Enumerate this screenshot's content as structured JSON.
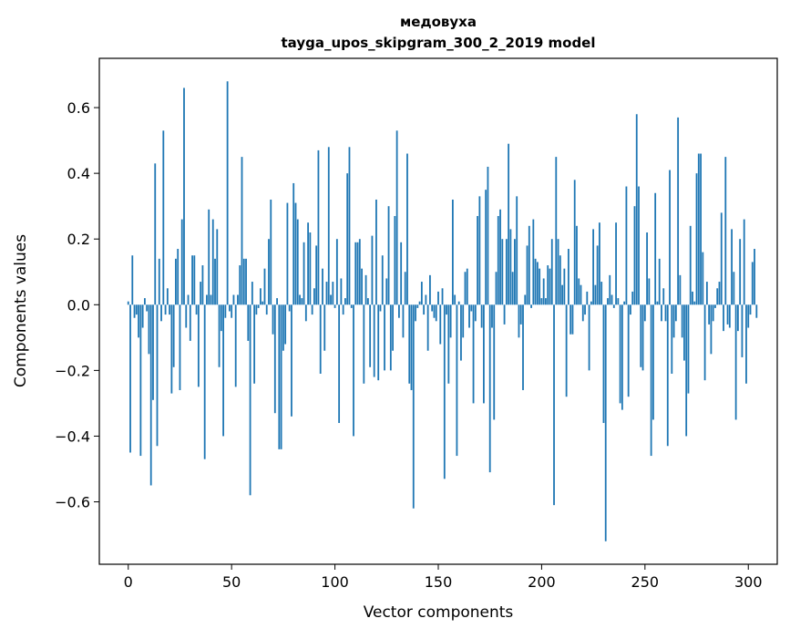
{
  "chart_data": {
    "type": "bar",
    "title_line1": "медовуха",
    "title_line2": "tayga_upos_skipgram_300_2_2019 model",
    "xlabel": "Vector components",
    "ylabel": "Components values",
    "xlim": [
      -14,
      314
    ],
    "ylim": [
      -0.79,
      0.75
    ],
    "xticks": [
      0,
      50,
      100,
      150,
      200,
      250,
      300
    ],
    "xtick_labels": [
      "0",
      "50",
      "100",
      "150",
      "200",
      "250",
      "300"
    ],
    "yticks": [
      -0.6,
      -0.4,
      -0.2,
      0.0,
      0.2,
      0.4,
      0.6
    ],
    "ytick_labels": [
      "−0.6",
      "−0.4",
      "−0.2",
      "0.0",
      "0.2",
      "0.4",
      "0.6"
    ],
    "bar_color": "#1f77b4",
    "values": [
      0.01,
      -0.45,
      0.15,
      -0.04,
      -0.03,
      -0.1,
      -0.46,
      -0.07,
      0.02,
      -0.02,
      -0.15,
      -0.55,
      -0.29,
      0.43,
      -0.43,
      0.14,
      -0.05,
      0.53,
      -0.03,
      0.05,
      -0.03,
      -0.27,
      -0.19,
      0.14,
      0.17,
      -0.26,
      0.26,
      0.66,
      -0.07,
      0.03,
      -0.11,
      0.15,
      0.15,
      -0.03,
      -0.25,
      0.07,
      0.12,
      -0.47,
      0.03,
      0.29,
      0.03,
      0.26,
      0.14,
      0.23,
      -0.19,
      -0.08,
      -0.4,
      -0.04,
      0.68,
      -0.02,
      -0.04,
      0.03,
      -0.25,
      0.03,
      0.12,
      0.45,
      0.14,
      0.14,
      -0.11,
      -0.58,
      0.07,
      -0.24,
      -0.03,
      -0.01,
      0.05,
      0.01,
      0.11,
      -0.03,
      0.2,
      0.32,
      -0.09,
      -0.33,
      0.02,
      -0.44,
      -0.44,
      -0.14,
      -0.12,
      0.31,
      -0.02,
      -0.34,
      0.37,
      0.31,
      0.26,
      0.03,
      0.02,
      0.19,
      -0.05,
      0.25,
      0.22,
      -0.03,
      0.05,
      0.18,
      0.47,
      -0.21,
      0.11,
      -0.14,
      0.07,
      0.48,
      0.03,
      0.07,
      -0.01,
      0.2,
      -0.36,
      0.08,
      -0.03,
      0.02,
      0.4,
      0.48,
      -0.01,
      -0.4,
      0.19,
      0.19,
      0.2,
      0.11,
      -0.24,
      0.09,
      0.02,
      -0.19,
      0.21,
      -0.22,
      0.32,
      -0.23,
      -0.02,
      0.15,
      -0.2,
      0.08,
      0.3,
      -0.2,
      -0.14,
      0.27,
      0.53,
      -0.04,
      0.19,
      -0.1,
      0.1,
      0.46,
      -0.24,
      -0.26,
      -0.62,
      -0.05,
      -0.01,
      0.01,
      0.07,
      -0.03,
      0.03,
      -0.14,
      0.09,
      -0.02,
      -0.04,
      -0.05,
      0.04,
      -0.12,
      0.05,
      -0.53,
      -0.03,
      -0.24,
      -0.1,
      0.32,
      0.03,
      -0.46,
      0.01,
      -0.17,
      -0.1,
      0.1,
      0.11,
      -0.07,
      -0.02,
      -0.3,
      -0.05,
      0.27,
      0.33,
      -0.07,
      -0.3,
      0.35,
      0.42,
      -0.51,
      -0.07,
      -0.35,
      0.1,
      0.27,
      0.29,
      0.2,
      -0.06,
      0.2,
      0.49,
      0.23,
      0.1,
      0.2,
      0.33,
      -0.1,
      -0.06,
      -0.26,
      0.03,
      0.18,
      0.24,
      -0.01,
      0.26,
      0.14,
      0.13,
      0.11,
      0.02,
      0.08,
      0.02,
      0.12,
      0.11,
      0.2,
      -0.61,
      0.45,
      0.2,
      0.15,
      0.06,
      0.11,
      -0.28,
      0.17,
      -0.09,
      -0.09,
      0.38,
      0.24,
      0.08,
      0.06,
      -0.05,
      -0.03,
      0.04,
      -0.2,
      0.01,
      0.23,
      0.06,
      0.18,
      0.25,
      0.07,
      -0.36,
      -0.72,
      0.02,
      0.09,
      0.03,
      -0.01,
      0.25,
      0.02,
      -0.3,
      -0.32,
      0.01,
      0.36,
      -0.28,
      -0.03,
      0.04,
      0.3,
      0.58,
      0.36,
      -0.19,
      -0.2,
      -0.05,
      0.22,
      0.08,
      -0.46,
      -0.35,
      0.34,
      0.01,
      0.14,
      -0.05,
      0.05,
      -0.05,
      -0.43,
      0.41,
      -0.21,
      -0.1,
      -0.05,
      0.57,
      0.09,
      -0.1,
      -0.17,
      -0.4,
      -0.27,
      0.24,
      0.04,
      0.01,
      0.4,
      0.46,
      0.46,
      0.16,
      -0.23,
      0.07,
      -0.06,
      -0.15,
      -0.05,
      -0.01,
      0.05,
      0.07,
      0.28,
      -0.08,
      0.45,
      -0.06,
      -0.07,
      0.23,
      0.1,
      -0.35,
      -0.08,
      0.2,
      -0.16,
      0.26,
      -0.24,
      -0.07,
      -0.03,
      0.13,
      0.17,
      -0.04
    ]
  }
}
